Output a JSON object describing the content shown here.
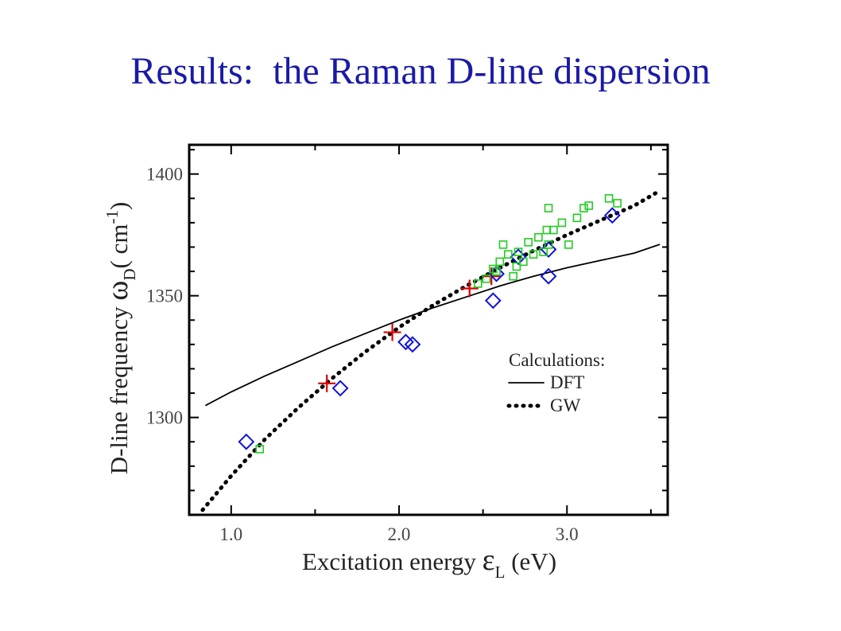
{
  "slide": {
    "title": "Results:  the Raman D-line dispersion"
  },
  "chart_data": {
    "type": "scatter",
    "title": "",
    "xlabel": {
      "main": "Excitation  energy ",
      "symbol": "ε",
      "sub": "L",
      "tail": " (eV)"
    },
    "ylabel": {
      "main": "D-line frequency ",
      "symbol": "ω",
      "sub": "D",
      "tail": "( cm",
      "sup": "-1",
      "end": ")"
    },
    "xlim": [
      0.75,
      3.6
    ],
    "ylim": [
      1260,
      1412
    ],
    "xticks": [
      1.0,
      2.0,
      3.0
    ],
    "xtick_labels": [
      "1.0",
      "2.0",
      "3.0"
    ],
    "yticks": [
      1300,
      1350,
      1400
    ],
    "ytick_labels": [
      "1300",
      "1350",
      "1400"
    ],
    "grid": false,
    "legend": {
      "position": "right",
      "title": "Calculations:",
      "entries": [
        {
          "name": "DFT",
          "style": "solid"
        },
        {
          "name": "GW",
          "style": "dotted"
        }
      ]
    },
    "colors": {
      "red": "#e00000",
      "blue": "#1010e0",
      "green": "#22cc22",
      "line": "#000000"
    },
    "series": [
      {
        "name": "DFT",
        "kind": "line",
        "style": "solid",
        "x": [
          0.85,
          1.0,
          1.2,
          1.4,
          1.6,
          1.8,
          2.0,
          2.2,
          2.4,
          2.6,
          2.8,
          3.0,
          3.2,
          3.4,
          3.55
        ],
        "y": [
          1305,
          1310.5,
          1317,
          1323,
          1329,
          1334.5,
          1340,
          1345,
          1349.5,
          1354,
          1358,
          1361.5,
          1364.5,
          1367.5,
          1371
        ]
      },
      {
        "name": "GW",
        "kind": "line",
        "style": "dotted",
        "x": [
          0.83,
          1.0,
          1.2,
          1.4,
          1.6,
          1.8,
          2.0,
          2.2,
          2.4,
          2.6,
          2.8,
          3.0,
          3.2,
          3.4,
          3.55
        ],
        "y": [
          1262,
          1276,
          1291,
          1304,
          1316,
          1327,
          1337,
          1346,
          1354,
          1361.5,
          1368.5,
          1375,
          1381,
          1387,
          1393
        ]
      },
      {
        "kind": "markers",
        "marker": "plus",
        "color": "red",
        "x": [
          1.57,
          1.96,
          2.42,
          2.55
        ],
        "y": [
          1314,
          1335,
          1353,
          1358
        ]
      },
      {
        "kind": "markers",
        "marker": "diamond",
        "color": "blue",
        "x": [
          1.09,
          1.65,
          2.04,
          2.08,
          2.56,
          2.58,
          2.71,
          2.89,
          2.89,
          3.27
        ],
        "y": [
          1290,
          1312,
          1331,
          1330,
          1348,
          1359,
          1366,
          1369,
          1358,
          1383
        ]
      },
      {
        "kind": "markers",
        "marker": "square",
        "color": "green",
        "x": [
          1.17,
          2.47,
          2.52,
          2.56,
          2.58,
          2.6,
          2.62,
          2.65,
          2.68,
          2.71,
          2.74,
          2.77,
          2.8,
          2.83,
          2.86,
          2.89,
          2.89,
          2.92,
          2.97,
          3.01,
          3.06,
          3.1,
          3.13,
          3.25,
          3.3,
          2.7,
          2.88
        ],
        "y": [
          1287,
          1355,
          1357,
          1361,
          1360,
          1364,
          1371,
          1367,
          1358,
          1368,
          1364,
          1372,
          1367,
          1374,
          1368,
          1371,
          1386,
          1377,
          1380,
          1371,
          1382,
          1386,
          1387,
          1390,
          1388,
          1362,
          1377
        ]
      }
    ]
  }
}
